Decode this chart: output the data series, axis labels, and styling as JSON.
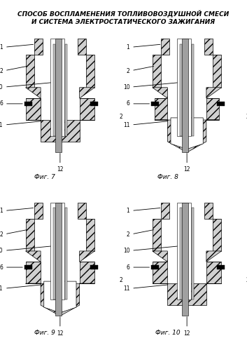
{
  "title_line1": "СПОСОБ ВОСПЛАМЕНЕНИЯ ТОПЛИВОВОЗДУШНОЙ СМЕСИ",
  "title_line2": "И СИСТЕМА ЭЛЕКТРОСТАТИЧЕСКОГО ЗАЖИГАНИЯ",
  "title_fontsize": 6.5,
  "fig_labels": [
    "Фиг. 7",
    "Фиг. 8",
    "Фиг. 9",
    "Фиг. 10"
  ],
  "part_labels": {
    "1": "1",
    "2": "2",
    "6": "6",
    "10": "10",
    "11": "11",
    "12": "12"
  },
  "bg_color": "#ffffff",
  "hatch_color": "#888888",
  "body_color": "#cccccc",
  "inner_color": "#e8e8e8",
  "dark_color": "#444444",
  "line_color": "#000000"
}
